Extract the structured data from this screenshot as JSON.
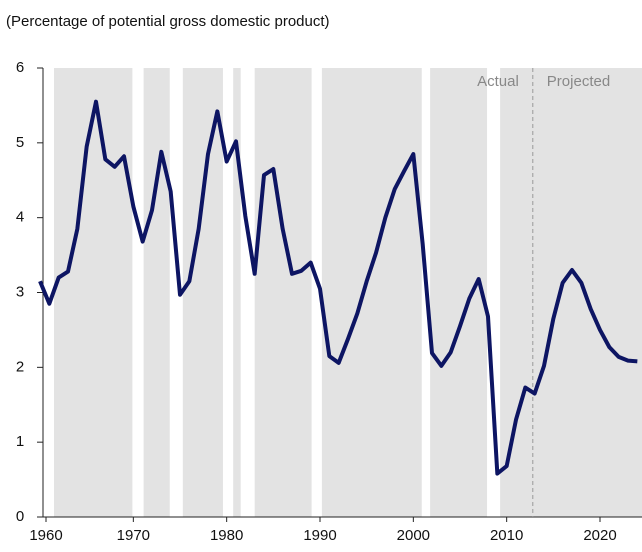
{
  "chart_data": {
    "type": "line",
    "subtitle": "(Percentage of potential gross domestic product)",
    "x": [
      1960,
      1961,
      1962,
      1963,
      1964,
      1965,
      1966,
      1967,
      1968,
      1969,
      1970,
      1971,
      1972,
      1973,
      1974,
      1975,
      1976,
      1977,
      1978,
      1979,
      1980,
      1981,
      1982,
      1983,
      1984,
      1985,
      1986,
      1987,
      1988,
      1989,
      1990,
      1991,
      1992,
      1993,
      1994,
      1995,
      1996,
      1997,
      1998,
      1999,
      2000,
      2001,
      2002,
      2003,
      2004,
      2005,
      2006,
      2007,
      2008,
      2009,
      2010,
      2011,
      2012,
      2013,
      2014,
      2015,
      2016,
      2017,
      2018,
      2019,
      2020,
      2021,
      2022,
      2023,
      2024
    ],
    "series": [
      {
        "color": "#0d1563",
        "values": [
          3.15,
          2.85,
          3.2,
          3.28,
          3.85,
          4.95,
          5.55,
          4.78,
          4.68,
          4.82,
          4.15,
          3.68,
          4.1,
          4.88,
          4.35,
          2.97,
          3.15,
          3.85,
          4.85,
          5.42,
          4.75,
          5.02,
          4.02,
          3.25,
          4.57,
          4.65,
          3.85,
          3.25,
          3.29,
          3.4,
          3.05,
          2.15,
          2.06,
          2.38,
          2.72,
          3.15,
          3.53,
          4.0,
          4.38,
          4.62,
          4.85,
          3.65,
          2.19,
          2.02,
          2.2,
          2.55,
          2.92,
          3.18,
          2.68,
          0.58,
          0.68,
          1.3,
          1.73,
          1.65,
          2.02,
          2.65,
          3.13,
          3.3,
          3.13,
          2.78,
          2.5,
          2.27,
          2.14,
          2.09,
          2.08
        ]
      }
    ],
    "shaded_ranges": [
      [
        1961.5,
        1969.9
      ],
      [
        1971.1,
        1973.9
      ],
      [
        1975.3,
        1979.6
      ],
      [
        1980.7,
        1981.5
      ],
      [
        1983.0,
        1989.1
      ],
      [
        1990.2,
        2000.9
      ],
      [
        2001.8,
        2007.9
      ],
      [
        2009.3,
        2024.5
      ]
    ],
    "shade_color": "#e3e3e3",
    "divider_x": 2012.8,
    "annotations": [
      "Actual",
      "Projected"
    ],
    "xlim": [
      1960,
      2024.5
    ],
    "ylim": [
      0,
      6
    ],
    "xticks": [
      1960,
      1970,
      1980,
      1990,
      2000,
      2010,
      2020
    ],
    "yticks": [
      0,
      1,
      2,
      3,
      4,
      5,
      6
    ]
  }
}
